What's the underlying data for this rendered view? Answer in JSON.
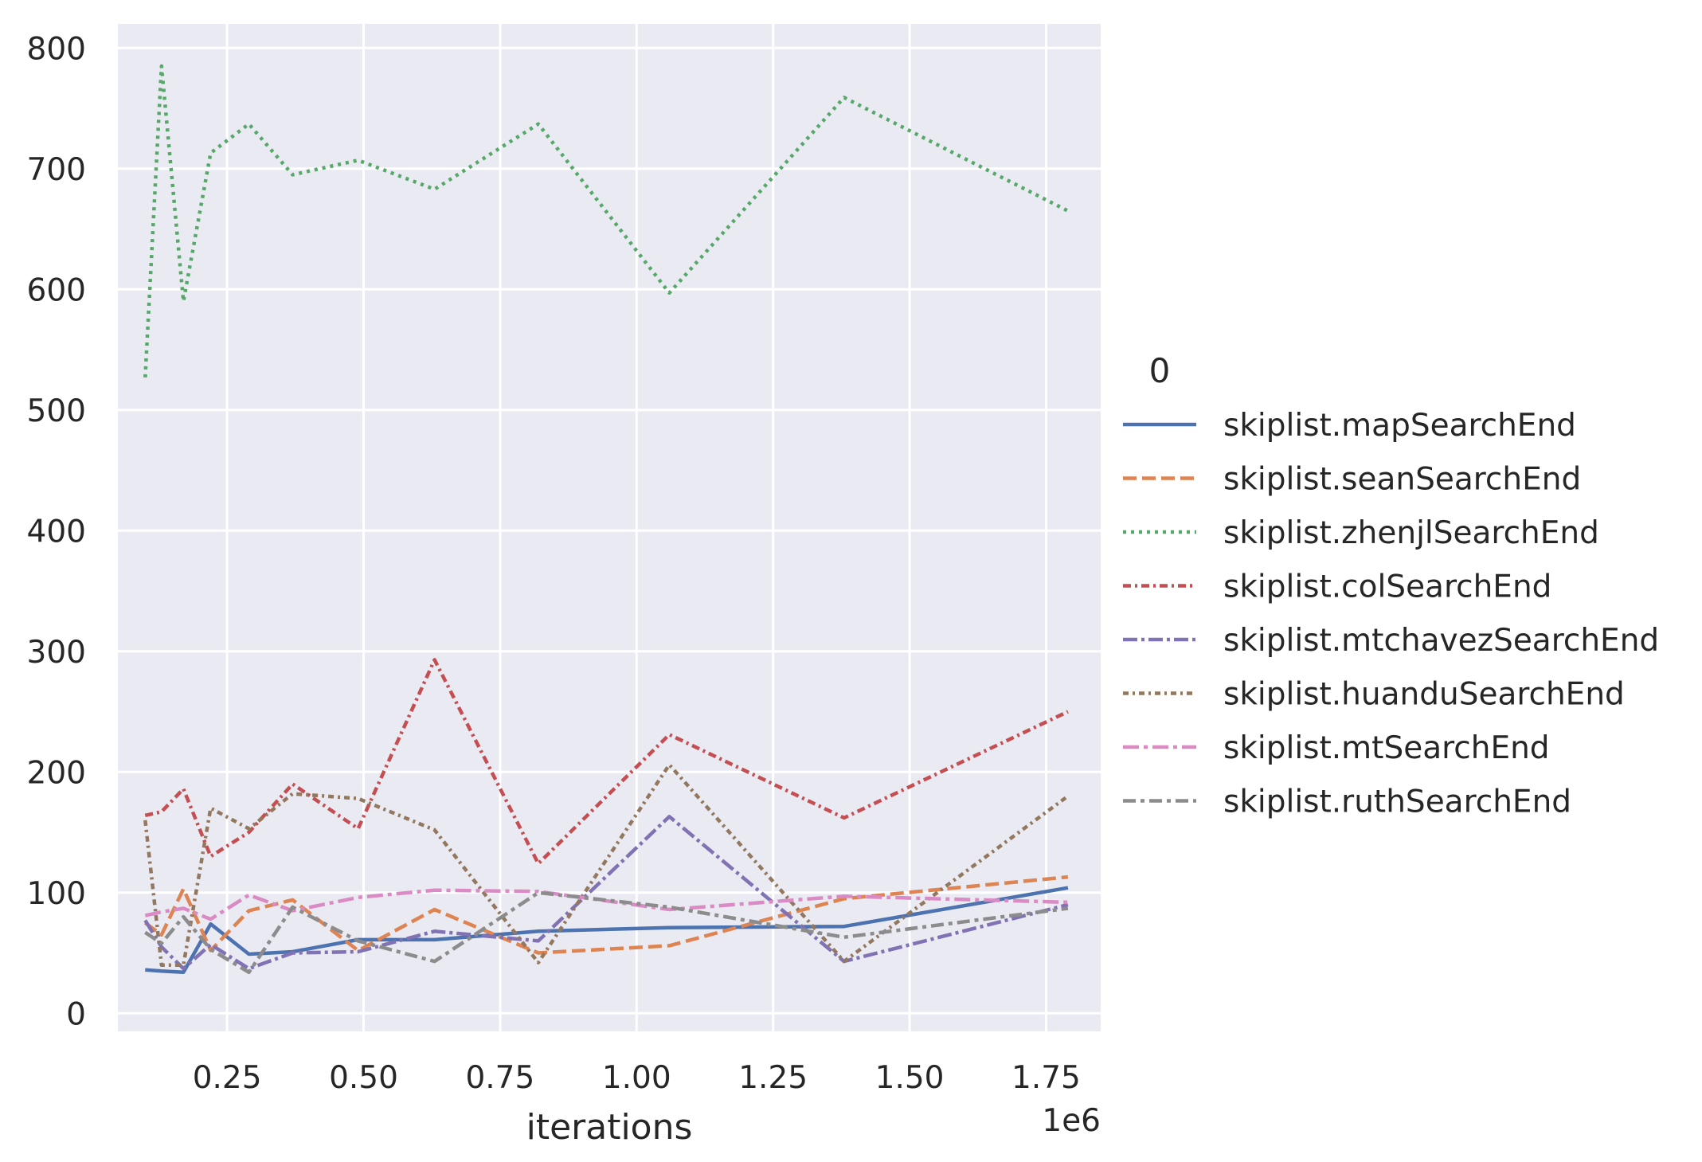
{
  "chart_data": {
    "type": "line",
    "xlabel": "iterations",
    "x_multiplier_label": "1e6",
    "ylabel": "",
    "xlim": [
      0.05,
      1.85
    ],
    "ylim": [
      -15,
      820
    ],
    "x_ticks": [
      0.25,
      0.5,
      0.75,
      1.0,
      1.25,
      1.5,
      1.75
    ],
    "x_tick_labels": [
      "0.25",
      "0.50",
      "0.75",
      "1.00",
      "1.25",
      "1.50",
      "1.75"
    ],
    "y_ticks": [
      0,
      100,
      200,
      300,
      400,
      500,
      600,
      700,
      800
    ],
    "y_tick_labels": [
      "0",
      "100",
      "200",
      "300",
      "400",
      "500",
      "600",
      "700",
      "800"
    ],
    "grid": true,
    "legend_title": "0",
    "legend_position": "right",
    "series": [
      {
        "name": "skiplist.mapSearchEnd",
        "color": "#4c72b0",
        "dash": "solid",
        "x": [
          0.1,
          0.13,
          0.17,
          0.22,
          0.29,
          0.37,
          0.49,
          0.63,
          0.82,
          1.06,
          1.38,
          1.79
        ],
        "y": [
          36,
          35,
          34,
          74,
          49,
          51,
          61,
          61,
          68,
          71,
          72,
          104
        ]
      },
      {
        "name": "skiplist.seanSearchEnd",
        "color": "#dd8452",
        "dash": "dashed",
        "x": [
          0.1,
          0.13,
          0.17,
          0.22,
          0.29,
          0.37,
          0.49,
          0.63,
          0.82,
          1.06,
          1.38,
          1.79
        ],
        "y": [
          75,
          65,
          103,
          52,
          85,
          94,
          52,
          86,
          50,
          56,
          95,
          113
        ]
      },
      {
        "name": "skiplist.zhenjlSearchEnd",
        "color": "#55a868",
        "dash": "dotted",
        "x": [
          0.1,
          0.13,
          0.17,
          0.22,
          0.29,
          0.37,
          0.49,
          0.63,
          0.82,
          1.06,
          1.38,
          1.79
        ],
        "y": [
          527,
          785,
          590,
          713,
          737,
          695,
          707,
          683,
          737,
          597,
          759,
          665
        ]
      },
      {
        "name": "skiplist.colSearchEnd",
        "color": "#c44e52",
        "dash": "dashdot-short",
        "x": [
          0.1,
          0.13,
          0.17,
          0.22,
          0.29,
          0.37,
          0.49,
          0.63,
          0.82,
          1.06,
          1.38,
          1.79
        ],
        "y": [
          164,
          167,
          186,
          130,
          150,
          190,
          153,
          293,
          124,
          231,
          162,
          250
        ]
      },
      {
        "name": "skiplist.mtchavezSearchEnd",
        "color": "#8172b3",
        "dash": "dashdot",
        "x": [
          0.1,
          0.13,
          0.17,
          0.22,
          0.29,
          0.37,
          0.49,
          0.63,
          0.82,
          1.06,
          1.38,
          1.79
        ],
        "y": [
          77,
          55,
          37,
          57,
          37,
          50,
          51,
          68,
          60,
          163,
          43,
          90
        ]
      },
      {
        "name": "skiplist.huanduSearchEnd",
        "color": "#937860",
        "dash": "dashdot-dense",
        "x": [
          0.1,
          0.13,
          0.17,
          0.22,
          0.29,
          0.37,
          0.49,
          0.63,
          0.82,
          1.06,
          1.38,
          1.79
        ],
        "y": [
          160,
          40,
          40,
          170,
          153,
          182,
          178,
          152,
          42,
          206,
          43,
          180
        ]
      },
      {
        "name": "skiplist.mtSearchEnd",
        "color": "#da8bc3",
        "dash": "dashdot-long",
        "x": [
          0.1,
          0.13,
          0.17,
          0.22,
          0.29,
          0.37,
          0.49,
          0.63,
          0.82,
          1.06,
          1.38,
          1.79
        ],
        "y": [
          81,
          84,
          87,
          78,
          98,
          85,
          96,
          102,
          101,
          86,
          97,
          92
        ]
      },
      {
        "name": "skiplist.ruthSearchEnd",
        "color": "#8c8c8c",
        "dash": "dashdot-gray",
        "x": [
          0.1,
          0.13,
          0.17,
          0.22,
          0.29,
          0.37,
          0.49,
          0.63,
          0.82,
          1.06,
          1.38,
          1.79
        ],
        "y": [
          67,
          58,
          80,
          53,
          34,
          88,
          60,
          43,
          100,
          88,
          63,
          87
        ]
      }
    ]
  }
}
